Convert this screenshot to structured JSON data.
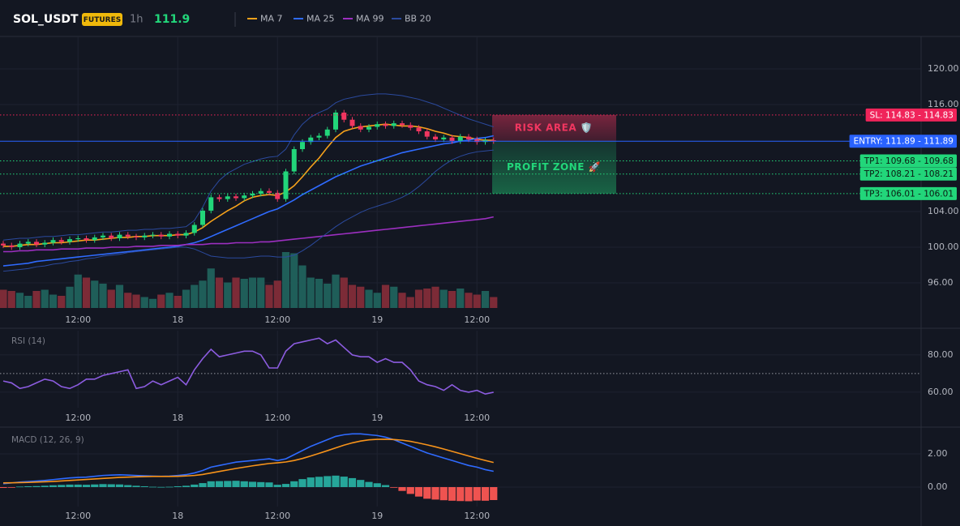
{
  "header": {
    "symbol": "SOL_USDT",
    "badge": "FUTURES",
    "interval": "1h",
    "last_price": 111.9
  },
  "chart_data": [
    {
      "type": "candlestick",
      "ylim": [
        93.18,
        123.64
      ],
      "yticks": [
        {
          "value": 120,
          "label": "120.00"
        },
        {
          "value": 116,
          "label": "116.00"
        },
        {
          "value": 104,
          "label": "104.00"
        },
        {
          "value": 100,
          "label": "100.00"
        },
        {
          "value": 96,
          "label": "96.00"
        }
      ],
      "xticks": [
        {
          "value": 9,
          "label": "12:00"
        },
        {
          "value": 21,
          "label": "18"
        },
        {
          "value": 33,
          "label": "12:00"
        },
        {
          "value": 45,
          "label": "19"
        },
        {
          "value": 57,
          "label": "12:00"
        }
      ],
      "grid": true,
      "up_color": "#22d67a",
      "down_color": "#f23660",
      "open": [
        100.4,
        100.2,
        100.0,
        100.4,
        100.6,
        100.3,
        100.5,
        100.8,
        100.6,
        100.9,
        101.0,
        100.8,
        101.1,
        101.3,
        101.0,
        101.4,
        101.2,
        101.1,
        101.3,
        101.4,
        101.2,
        101.5,
        101.3,
        101.6,
        102.5,
        104.1,
        105.6,
        105.4,
        105.7,
        105.5,
        105.8,
        106.0,
        106.3,
        106.1,
        105.4,
        108.5,
        111.0,
        111.8,
        112.3,
        112.5,
        113.2,
        115.1,
        114.3,
        113.6,
        113.2,
        113.5,
        113.8,
        113.6,
        113.9,
        113.7,
        113.4,
        113.0,
        112.4,
        112.1,
        112.3,
        111.9,
        112.4,
        112.1,
        111.8,
        112.0
      ],
      "high": [
        100.7,
        100.5,
        100.7,
        100.9,
        100.9,
        100.8,
        101.1,
        101.1,
        101.2,
        101.3,
        101.3,
        101.4,
        101.6,
        101.6,
        101.7,
        101.7,
        101.5,
        101.6,
        101.7,
        101.7,
        101.8,
        101.8,
        101.9,
        102.8,
        104.4,
        105.9,
        105.9,
        106.0,
        106.0,
        106.1,
        106.3,
        106.6,
        106.6,
        106.4,
        108.8,
        111.3,
        112.1,
        112.6,
        112.8,
        113.5,
        115.4,
        115.4,
        114.6,
        113.9,
        113.8,
        114.1,
        114.1,
        114.2,
        114.2,
        114.0,
        113.7,
        113.3,
        112.7,
        112.6,
        112.6,
        112.7,
        112.7,
        112.4,
        112.3,
        112.3
      ],
      "low": [
        99.9,
        99.7,
        99.7,
        100.1,
        100.0,
        100.0,
        100.2,
        100.3,
        100.3,
        100.6,
        100.5,
        100.5,
        100.8,
        100.7,
        100.7,
        100.9,
        100.8,
        100.8,
        101.0,
        100.9,
        100.9,
        101.0,
        101.0,
        101.3,
        102.2,
        103.8,
        105.1,
        105.1,
        105.2,
        105.2,
        105.5,
        105.7,
        105.8,
        105.1,
        105.1,
        108.2,
        110.7,
        111.5,
        112.0,
        112.2,
        112.9,
        114.0,
        113.3,
        112.9,
        112.9,
        113.2,
        113.3,
        113.3,
        113.4,
        113.1,
        112.7,
        112.1,
        111.8,
        111.8,
        111.6,
        111.6,
        111.8,
        111.5,
        111.5,
        111.6
      ],
      "close": [
        100.2,
        100.0,
        100.4,
        100.6,
        100.3,
        100.5,
        100.8,
        100.6,
        100.9,
        101.0,
        100.8,
        101.1,
        101.3,
        101.0,
        101.4,
        101.2,
        101.1,
        101.3,
        101.4,
        101.2,
        101.5,
        101.3,
        101.6,
        102.5,
        104.1,
        105.6,
        105.4,
        105.7,
        105.5,
        105.8,
        106.0,
        106.3,
        106.1,
        105.4,
        108.5,
        111.0,
        111.8,
        112.3,
        112.5,
        113.2,
        115.1,
        114.3,
        113.6,
        113.2,
        113.5,
        113.8,
        113.6,
        113.9,
        113.7,
        113.4,
        113.0,
        112.4,
        112.1,
        112.3,
        111.9,
        112.4,
        112.1,
        111.8,
        112.0,
        111.9
      ],
      "volume": [
        30,
        28,
        25,
        20,
        28,
        30,
        22,
        20,
        35,
        55,
        50,
        45,
        40,
        30,
        38,
        25,
        22,
        18,
        15,
        22,
        25,
        20,
        30,
        38,
        45,
        65,
        50,
        42,
        50,
        48,
        50,
        50,
        38,
        45,
        92,
        90,
        70,
        50,
        48,
        40,
        55,
        50,
        38,
        35,
        30,
        25,
        38,
        35,
        25,
        18,
        30,
        32,
        35,
        30,
        28,
        32,
        25,
        22,
        28,
        18
      ],
      "volume_ylim": [
        0,
        100
      ],
      "volume_up_color": "#1f5e59",
      "volume_down_color": "#7c2b37",
      "series": [
        {
          "name": "MA 7",
          "color": "#f7a21b",
          "values": [
            100.1,
            100.1,
            100.2,
            100.3,
            100.3,
            100.4,
            100.5,
            100.5,
            100.6,
            100.7,
            100.8,
            100.8,
            100.9,
            101.0,
            101.1,
            101.1,
            101.2,
            101.2,
            101.3,
            101.3,
            101.3,
            101.4,
            101.4,
            101.7,
            102.2,
            102.9,
            103.5,
            104.1,
            104.6,
            105.2,
            105.6,
            105.8,
            105.9,
            105.8,
            106.2,
            106.9,
            107.9,
            109.0,
            110.0,
            111.2,
            112.3,
            113.0,
            113.3,
            113.5,
            113.6,
            113.7,
            113.8,
            113.7,
            113.6,
            113.6,
            113.5,
            113.3,
            113.0,
            112.8,
            112.5,
            112.4,
            112.3,
            112.1,
            112.0,
            112.0
          ]
        },
        {
          "name": "MA 25",
          "color": "#2f6bff",
          "values": [
            97.9,
            98.0,
            98.1,
            98.2,
            98.4,
            98.5,
            98.6,
            98.7,
            98.8,
            98.9,
            99.0,
            99.1,
            99.2,
            99.3,
            99.4,
            99.5,
            99.6,
            99.7,
            99.8,
            99.9,
            100.0,
            100.1,
            100.3,
            100.5,
            100.8,
            101.2,
            101.6,
            102.0,
            102.4,
            102.8,
            103.2,
            103.6,
            104.0,
            104.3,
            104.8,
            105.3,
            105.9,
            106.4,
            106.9,
            107.4,
            107.9,
            108.3,
            108.7,
            109.1,
            109.4,
            109.7,
            110.0,
            110.3,
            110.6,
            110.8,
            111.0,
            111.2,
            111.4,
            111.6,
            111.7,
            111.9,
            112.0,
            112.2,
            112.3,
            112.5
          ]
        },
        {
          "name": "MA 99",
          "color": "#9c2fc0",
          "values": [
            99.5,
            99.5,
            99.6,
            99.6,
            99.7,
            99.7,
            99.7,
            99.8,
            99.8,
            99.8,
            99.9,
            99.9,
            99.9,
            100.0,
            100.0,
            100.0,
            100.1,
            100.1,
            100.1,
            100.2,
            100.2,
            100.2,
            100.3,
            100.3,
            100.3,
            100.4,
            100.4,
            100.4,
            100.5,
            100.5,
            100.5,
            100.6,
            100.6,
            100.7,
            100.8,
            100.9,
            101.0,
            101.1,
            101.2,
            101.3,
            101.4,
            101.5,
            101.6,
            101.7,
            101.8,
            101.9,
            102.0,
            102.1,
            102.2,
            102.3,
            102.4,
            102.5,
            102.6,
            102.7,
            102.8,
            102.9,
            103.0,
            103.1,
            103.2,
            103.4
          ]
        },
        {
          "name": "BB 20",
          "color": "#2b4a9e",
          "upper": [
            100.8,
            100.9,
            101.0,
            101.0,
            101.1,
            101.2,
            101.2,
            101.3,
            101.4,
            101.4,
            101.5,
            101.6,
            101.7,
            101.7,
            101.8,
            101.9,
            101.9,
            102.0,
            102.0,
            102.1,
            102.1,
            102.2,
            102.3,
            103.0,
            104.5,
            106.3,
            107.5,
            108.3,
            108.8,
            109.3,
            109.6,
            109.9,
            110.1,
            110.2,
            111.0,
            112.6,
            113.8,
            114.6,
            115.1,
            115.5,
            116.2,
            116.6,
            116.8,
            117.0,
            117.1,
            117.2,
            117.2,
            117.1,
            117.0,
            116.8,
            116.6,
            116.3,
            116.0,
            115.6,
            115.2,
            114.8,
            114.4,
            114.1,
            113.8,
            113.5
          ],
          "lower": [
            97.3,
            97.4,
            97.5,
            97.6,
            97.8,
            97.9,
            98.1,
            98.2,
            98.4,
            98.5,
            98.7,
            98.8,
            99.0,
            99.1,
            99.2,
            99.4,
            99.5,
            99.6,
            99.7,
            99.8,
            99.9,
            100.0,
            100.0,
            99.8,
            99.4,
            99.0,
            98.9,
            98.8,
            98.8,
            98.8,
            98.9,
            99.0,
            99.0,
            98.9,
            98.9,
            99.1,
            99.6,
            100.2,
            100.9,
            101.6,
            102.3,
            102.9,
            103.4,
            103.9,
            104.3,
            104.6,
            104.9,
            105.2,
            105.6,
            106.1,
            106.8,
            107.6,
            108.5,
            109.2,
            109.8,
            110.2,
            110.5,
            110.7,
            110.8,
            110.9
          ]
        }
      ],
      "levels": [
        {
          "label": "SL: 114.83 - 114.83",
          "value": 114.83,
          "color": "#f0245a",
          "text_color": "#ffffff",
          "style": "dotted"
        },
        {
          "label": "ENTRY: 111.89 - 111.89",
          "value": 111.89,
          "color": "#2962ff",
          "text_color": "#ffffff",
          "style": "solid"
        },
        {
          "label": "TP1: 109.68 - 109.68",
          "value": 109.68,
          "color": "#22d67a",
          "text_color": "#0b1a12",
          "style": "dotted"
        },
        {
          "label": "TP2: 108.21 - 108.21",
          "value": 108.21,
          "color": "#22d67a",
          "text_color": "#0b1a12",
          "style": "dotted"
        },
        {
          "label": "TP3: 106.01 - 106.01",
          "value": 106.01,
          "color": "#22d67a",
          "text_color": "#0b1a12",
          "style": "dotted"
        }
      ],
      "zones": [
        {
          "label": "RISK AREA 🛡️",
          "from": 111.89,
          "to": 114.83,
          "color": "#f23660"
        },
        {
          "label": "PROFIT ZONE 🚀",
          "from": 106.01,
          "to": 111.89,
          "color": "#22d67a"
        }
      ]
    },
    {
      "type": "line",
      "title": "RSI (14)",
      "ylim": [
        51.7,
        93
      ],
      "yticks": [
        {
          "value": 80,
          "label": "80.00"
        },
        {
          "value": 60,
          "label": "60.00"
        }
      ],
      "xticks": [
        {
          "value": 9,
          "label": "12:00"
        },
        {
          "value": 21,
          "label": "18"
        },
        {
          "value": 33,
          "label": "12:00"
        },
        {
          "value": 45,
          "label": "19"
        },
        {
          "value": 57,
          "label": "12:00"
        }
      ],
      "grid": true,
      "ref_line": 70,
      "series": [
        {
          "color": "#8c5ce0",
          "values": [
            66,
            65,
            62,
            63,
            65,
            67,
            66,
            63,
            62,
            64,
            67,
            67,
            69,
            70,
            71,
            72,
            62,
            63,
            66,
            64,
            66,
            68,
            64,
            72,
            78,
            83,
            79,
            80,
            81,
            82,
            82,
            80,
            73,
            73,
            82,
            86,
            87,
            88,
            89,
            86,
            88,
            84,
            80,
            79,
            79,
            76,
            78,
            76,
            76,
            72,
            66,
            64,
            63,
            61,
            64,
            61,
            60,
            61,
            59,
            60
          ]
        }
      ]
    },
    {
      "type": "macd",
      "title": "MACD (12, 26, 9)",
      "ylim": [
        -1.17,
        3.46
      ],
      "yticks": [
        {
          "value": 2,
          "label": "2.00"
        },
        {
          "value": 0,
          "label": "0.00"
        }
      ],
      "xticks": [
        {
          "value": 9,
          "label": "12:00"
        },
        {
          "value": 21,
          "label": "18"
        },
        {
          "value": 33,
          "label": "12:00"
        },
        {
          "value": 45,
          "label": "19"
        },
        {
          "value": 57,
          "label": "12:00"
        }
      ],
      "grid": true,
      "histogram": [
        -0.05,
        -0.01,
        0.03,
        0.05,
        0.06,
        0.08,
        0.11,
        0.13,
        0.15,
        0.15,
        0.14,
        0.16,
        0.18,
        0.17,
        0.16,
        0.12,
        0.08,
        0.05,
        0.02,
        0.01,
        0.02,
        0.05,
        0.08,
        0.15,
        0.24,
        0.35,
        0.36,
        0.37,
        0.38,
        0.35,
        0.32,
        0.3,
        0.28,
        0.14,
        0.19,
        0.35,
        0.48,
        0.58,
        0.62,
        0.66,
        0.69,
        0.63,
        0.54,
        0.43,
        0.31,
        0.23,
        0.12,
        -0.02,
        -0.23,
        -0.41,
        -0.57,
        -0.7,
        -0.75,
        -0.79,
        -0.82,
        -0.84,
        -0.85,
        -0.81,
        -0.82,
        -0.78
      ],
      "hist_up_color": "#26a69a",
      "hist_down_color": "#ef5350",
      "series": [
        {
          "color": "#2f6bff",
          "values": [
            0.2,
            0.25,
            0.3,
            0.33,
            0.36,
            0.4,
            0.45,
            0.5,
            0.55,
            0.58,
            0.6,
            0.65,
            0.7,
            0.72,
            0.74,
            0.72,
            0.7,
            0.68,
            0.66,
            0.65,
            0.66,
            0.7,
            0.75,
            0.85,
            1.0,
            1.2,
            1.3,
            1.4,
            1.5,
            1.55,
            1.6,
            1.65,
            1.7,
            1.6,
            1.7,
            1.95,
            2.2,
            2.45,
            2.65,
            2.85,
            3.05,
            3.15,
            3.2,
            3.2,
            3.15,
            3.1,
            3.0,
            2.85,
            2.65,
            2.45,
            2.25,
            2.05,
            1.9,
            1.75,
            1.6,
            1.45,
            1.3,
            1.2,
            1.05,
            0.95
          ]
        },
        {
          "color": "#f7931a",
          "values": [
            0.25,
            0.26,
            0.27,
            0.28,
            0.3,
            0.32,
            0.34,
            0.37,
            0.4,
            0.43,
            0.46,
            0.49,
            0.52,
            0.55,
            0.58,
            0.6,
            0.62,
            0.63,
            0.64,
            0.64,
            0.64,
            0.65,
            0.67,
            0.7,
            0.76,
            0.85,
            0.94,
            1.03,
            1.12,
            1.2,
            1.28,
            1.35,
            1.42,
            1.46,
            1.51,
            1.6,
            1.72,
            1.87,
            2.03,
            2.19,
            2.36,
            2.52,
            2.66,
            2.77,
            2.84,
            2.87,
            2.88,
            2.86,
            2.82,
            2.75,
            2.65,
            2.54,
            2.42,
            2.29,
            2.15,
            2.01,
            1.87,
            1.73,
            1.6,
            1.48
          ]
        }
      ]
    }
  ]
}
